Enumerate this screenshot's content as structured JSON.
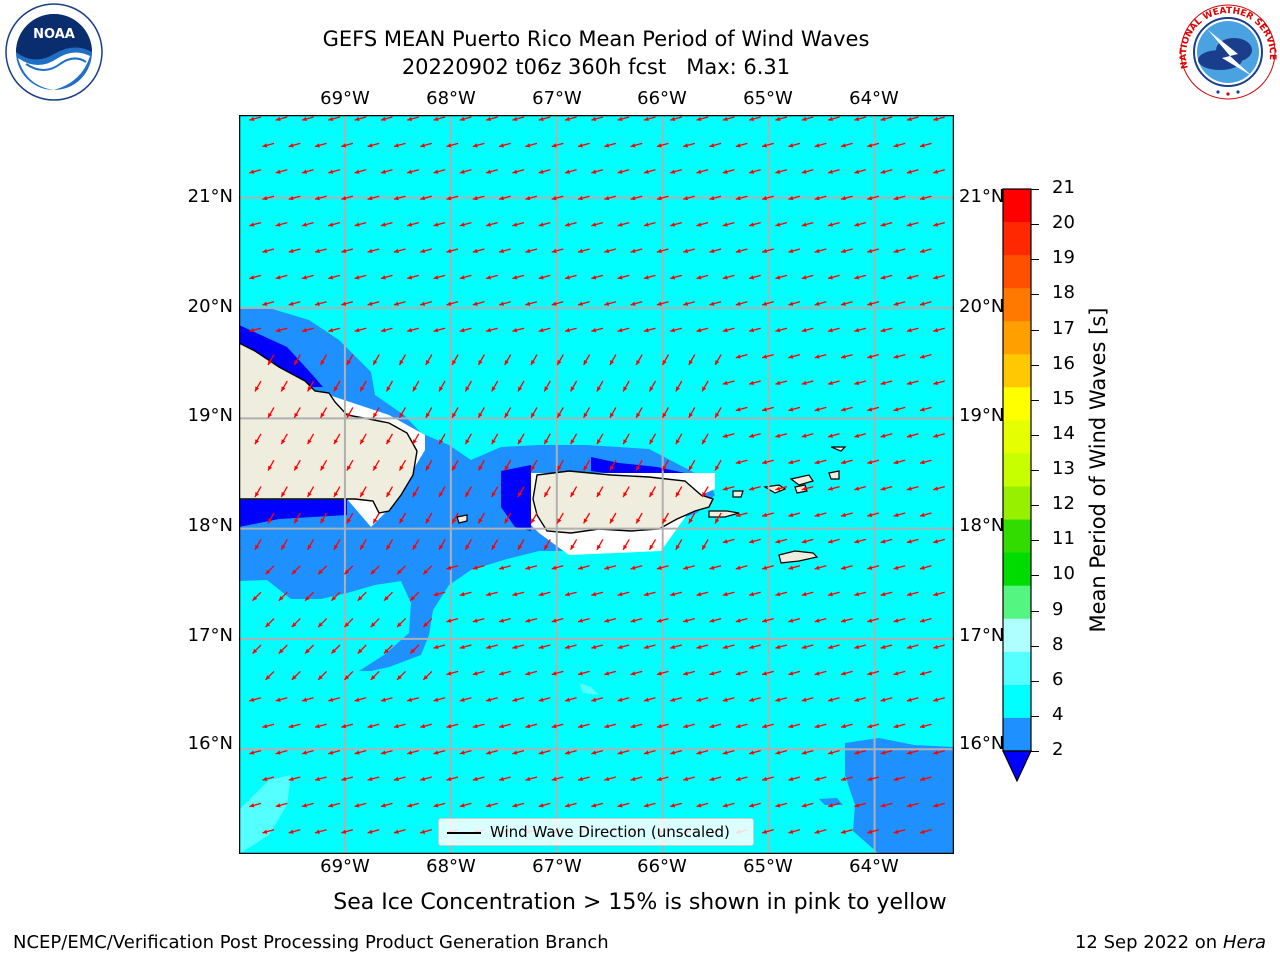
{
  "header": {
    "title_line1": "GEFS MEAN Puerto Rico Mean Period of Wind Waves",
    "title_line2": "20220902 t06z 360h fcst   Max: 6.31"
  },
  "logos": {
    "left": {
      "icon": "noaa-logo",
      "text": "NOAA"
    },
    "right": {
      "icon": "nws-logo",
      "text": "NATIONAL WEATHER SERVICE"
    }
  },
  "map": {
    "lon_labels": [
      "69°W",
      "68°W",
      "67°W",
      "66°W",
      "65°W",
      "64°W"
    ],
    "lat_labels": [
      "21°N",
      "20°N",
      "19°N",
      "18°N",
      "17°N",
      "16°N"
    ],
    "lon_range": [
      -70,
      -63.25
    ],
    "lat_range": [
      15.05,
      21.75
    ],
    "gridlines": true,
    "colors": {
      "ocean_field": "#00ffff",
      "low_period": "#1e90ff",
      "lowest_period": "#0000ff",
      "land": "#efedde",
      "arrows": "#ff0000",
      "grid": "#b0b0b0"
    },
    "arrow_direction": "toward west-southwest"
  },
  "legend": {
    "label": "Wind Wave Direction (unscaled)"
  },
  "colorbar": {
    "title": "Mean Period of Wind Waves [s]",
    "labels": [
      "21",
      "20",
      "19",
      "18",
      "17",
      "16",
      "15",
      "14",
      "13",
      "12",
      "11",
      "10",
      "9",
      "8",
      "6",
      "4",
      "2"
    ],
    "colors": [
      "#ff0000",
      "#ff2800",
      "#ff5000",
      "#ff7800",
      "#ffa000",
      "#ffc800",
      "#ffff00",
      "#e6ff00",
      "#c8ff00",
      "#96f000",
      "#32dc00",
      "#00dc00",
      "#55f582",
      "#afffff",
      "#55ffff",
      "#00ffff",
      "#1e90ff"
    ],
    "under_color": "#0000ff"
  },
  "caption": "Sea Ice Concentration > 15% is shown in pink to yellow",
  "footer": {
    "left": "NCEP/EMC/Verification Post Processing Product Generation Branch",
    "right_prefix": "12 Sep 2022 on",
    "right_host": "Hera"
  }
}
